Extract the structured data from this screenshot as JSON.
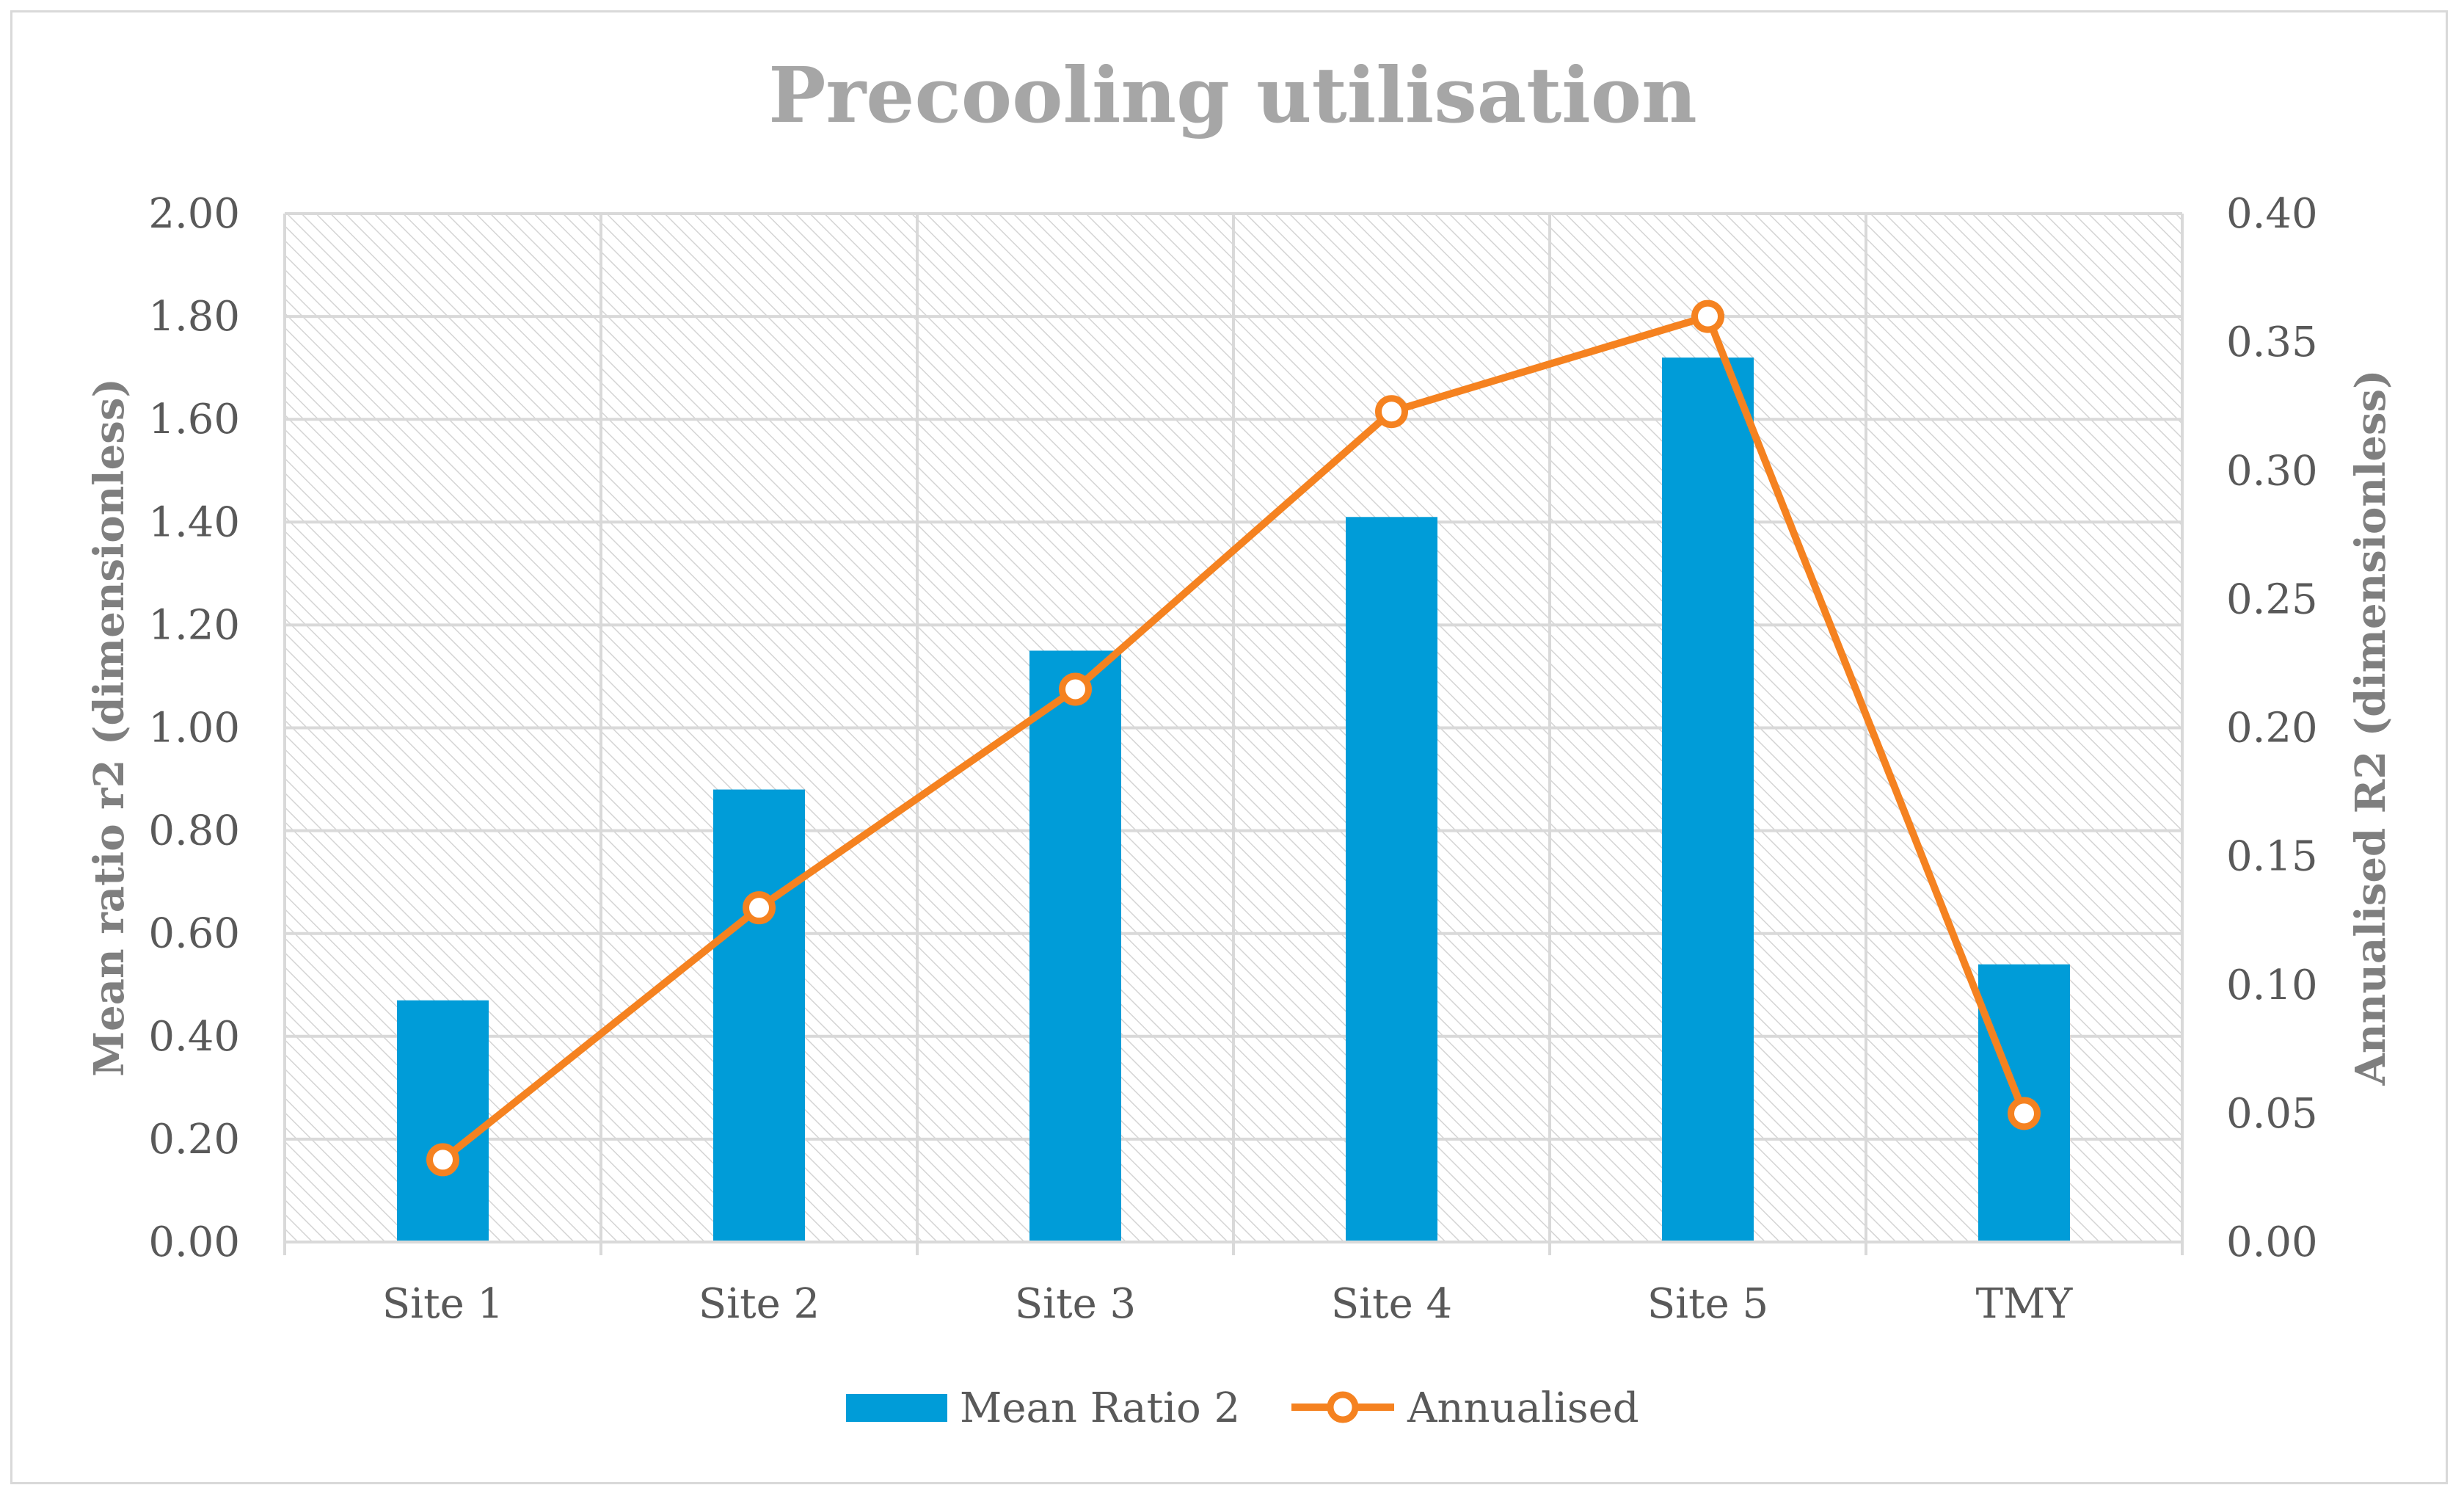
{
  "chart_data": {
    "type": "bar",
    "title": "Precooling utilisation",
    "categories": [
      "Site 1",
      "Site 2",
      "Site 3",
      "Site 4",
      "Site 5",
      "TMY"
    ],
    "series": [
      {
        "name": "Mean Ratio 2",
        "type": "bar",
        "axis": "left",
        "color": "#009cd8",
        "values": [
          0.47,
          0.88,
          1.15,
          1.41,
          1.72,
          0.54
        ]
      },
      {
        "name": "Annualised",
        "type": "line",
        "axis": "right",
        "color": "#f58220",
        "marker": "circle",
        "values": [
          0.032,
          0.13,
          0.215,
          0.323,
          0.36,
          0.05
        ]
      }
    ],
    "ylabel": "Mean ratio r2 (dimensionless)",
    "y2label": "Annualised R2 (dimensionless)",
    "ylim": [
      0,
      2.0
    ],
    "y2lim": [
      0,
      0.4
    ],
    "yticks": [
      "0.00",
      "0.20",
      "0.40",
      "0.60",
      "0.80",
      "1.00",
      "1.20",
      "1.40",
      "1.60",
      "1.80",
      "2.00"
    ],
    "y2ticks": [
      "0.00",
      "0.05",
      "0.10",
      "0.15",
      "0.20",
      "0.25",
      "0.30",
      "0.35",
      "0.40"
    ],
    "grid": true,
    "plot_background": "hatched",
    "legend": {
      "position": "bottom",
      "entries": [
        "Mean Ratio 2",
        "Annualised"
      ]
    }
  }
}
